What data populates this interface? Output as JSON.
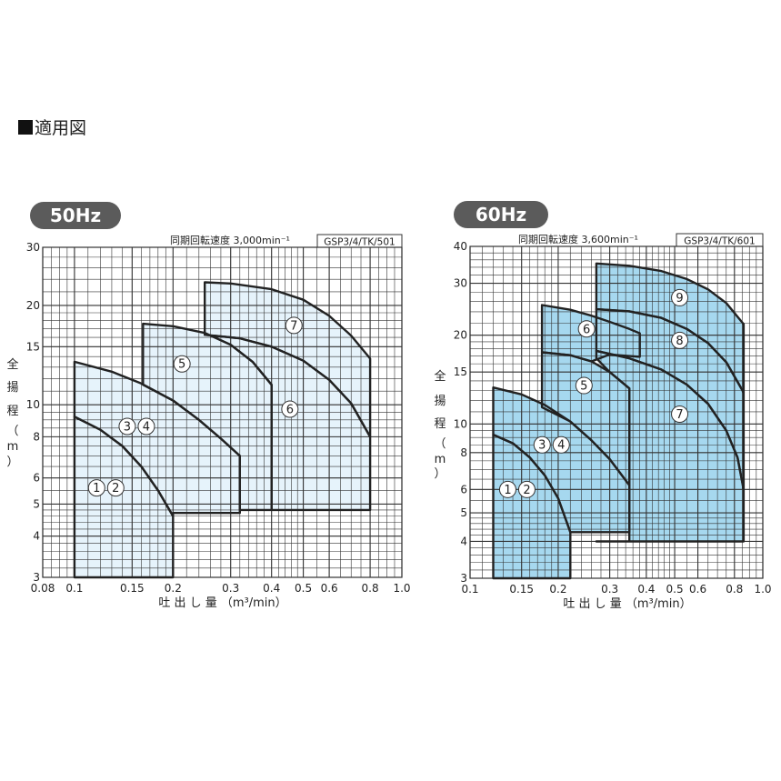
{
  "heading": "適用図",
  "chart_data": [
    {
      "type": "area",
      "badge": "50Hz",
      "subtitle": "同期回転速度 3,000min⁻¹",
      "model": "GSP3/4/TK/501",
      "xlabel": "吐 出 し 量 （m³/min）",
      "ylabel": [
        "全",
        "揚",
        "程",
        "（",
        "m",
        "）"
      ],
      "x_scale": "log",
      "y_scale": "log",
      "xlim": [
        0.08,
        1.0
      ],
      "ylim": [
        3,
        30
      ],
      "x_ticks": [
        "0.08",
        "0.1",
        "0.15",
        "0.2",
        "0.3",
        "0.4",
        "0.5",
        "0.6",
        "0.8",
        "1.0"
      ],
      "y_ticks": [
        "3",
        "4",
        "5",
        "6",
        "8",
        "10",
        "15",
        "20",
        "30"
      ],
      "fill": "#e6f3fb",
      "regions": [
        {
          "label": "①②",
          "label_at": [
            0.125,
            5.6
          ],
          "boundary": [
            [
              0.1,
              3
            ],
            [
              0.1,
              9.2
            ],
            [
              0.12,
              8.4
            ],
            [
              0.14,
              7.5
            ],
            [
              0.16,
              6.5
            ],
            [
              0.18,
              5.5
            ],
            [
              0.2,
              4.6
            ],
            [
              0.2,
              3
            ]
          ]
        },
        {
          "label": "③④",
          "label_at": [
            0.155,
            8.6
          ],
          "boundary": [
            [
              0.1,
              9.2
            ],
            [
              0.1,
              13.5
            ],
            [
              0.13,
              12.6
            ],
            [
              0.16,
              11.6
            ],
            [
              0.2,
              10.3
            ],
            [
              0.24,
              9.0
            ],
            [
              0.28,
              7.9
            ],
            [
              0.32,
              7.0
            ],
            [
              0.32,
              4.7
            ],
            [
              0.2,
              4.7
            ],
            [
              0.2,
              4.6
            ],
            [
              0.18,
              5.5
            ],
            [
              0.16,
              6.5
            ],
            [
              0.14,
              7.5
            ],
            [
              0.12,
              8.4
            ]
          ]
        },
        {
          "label": "⑤",
          "label_at": [
            0.213,
            13.3
          ],
          "boundary": [
            [
              0.162,
              11.5
            ],
            [
              0.162,
              17.6
            ],
            [
              0.2,
              17.3
            ],
            [
              0.25,
              16.5
            ],
            [
              0.3,
              15.2
            ],
            [
              0.35,
              13.5
            ],
            [
              0.4,
              11.5
            ],
            [
              0.4,
              4.8
            ],
            [
              0.32,
              4.8
            ],
            [
              0.32,
              7.0
            ],
            [
              0.28,
              7.9
            ],
            [
              0.24,
              9.0
            ],
            [
              0.2,
              10.3
            ]
          ]
        },
        {
          "label": "⑥",
          "label_at": [
            0.455,
            9.7
          ],
          "boundary": [
            [
              0.25,
              16.5
            ],
            [
              0.25,
              16.3
            ],
            [
              0.32,
              15.9
            ],
            [
              0.4,
              15.0
            ],
            [
              0.5,
              13.6
            ],
            [
              0.6,
              11.9
            ],
            [
              0.7,
              10.1
            ],
            [
              0.8,
              8.0
            ],
            [
              0.8,
              4.8
            ],
            [
              0.4,
              4.8
            ],
            [
              0.4,
              11.5
            ],
            [
              0.35,
              13.5
            ],
            [
              0.3,
              15.2
            ]
          ]
        },
        {
          "label": "⑦",
          "label_at": [
            0.468,
            17.4
          ],
          "boundary": [
            [
              0.25,
              16.3
            ],
            [
              0.25,
              23.5
            ],
            [
              0.3,
              23.3
            ],
            [
              0.4,
              22.4
            ],
            [
              0.5,
              20.8
            ],
            [
              0.6,
              18.6
            ],
            [
              0.7,
              16.2
            ],
            [
              0.8,
              13.8
            ],
            [
              0.8,
              8.0
            ],
            [
              0.7,
              10.1
            ],
            [
              0.6,
              11.9
            ],
            [
              0.5,
              13.6
            ],
            [
              0.4,
              15.0
            ],
            [
              0.32,
              15.9
            ]
          ]
        }
      ]
    },
    {
      "type": "area",
      "badge": "60Hz",
      "subtitle": "同期回転速度 3,600min⁻¹",
      "model": "GSP3/4/TK/601",
      "xlabel": "吐 出 し 量 （m³/min）",
      "ylabel": [
        "全",
        "揚",
        "程",
        "（",
        "m",
        "）"
      ],
      "x_scale": "log",
      "y_scale": "log",
      "xlim": [
        0.1,
        1.0
      ],
      "ylim": [
        3,
        40
      ],
      "x_ticks": [
        "0.1",
        "0.15",
        "0.2",
        "0.3",
        "0.4",
        "0.5",
        "0.6",
        "0.8",
        "1.0"
      ],
      "y_ticks": [
        "3",
        "4",
        "5",
        "6",
        "8",
        "10",
        "15",
        "20",
        "30",
        "40"
      ],
      "fill": "#a6d8ef",
      "regions": [
        {
          "label": "①②",
          "label_at": [
            0.145,
            6.0
          ],
          "boundary": [
            [
              0.12,
              3
            ],
            [
              0.12,
              9.2
            ],
            [
              0.14,
              8.6
            ],
            [
              0.16,
              7.7
            ],
            [
              0.18,
              6.7
            ],
            [
              0.2,
              5.6
            ],
            [
              0.22,
              4.3
            ],
            [
              0.22,
              3
            ]
          ]
        },
        {
          "label": "③④",
          "label_at": [
            0.19,
            8.5
          ],
          "boundary": [
            [
              0.12,
              9.2
            ],
            [
              0.12,
              13.3
            ],
            [
              0.15,
              12.6
            ],
            [
              0.18,
              11.6
            ],
            [
              0.22,
              10.2
            ],
            [
              0.26,
              8.8
            ],
            [
              0.3,
              7.6
            ],
            [
              0.35,
              6.2
            ],
            [
              0.35,
              4.3
            ],
            [
              0.22,
              4.3
            ],
            [
              0.22,
              4.3
            ],
            [
              0.2,
              5.6
            ],
            [
              0.18,
              6.7
            ],
            [
              0.16,
              7.7
            ],
            [
              0.14,
              8.6
            ]
          ]
        },
        {
          "label": "⑤",
          "label_at": [
            0.245,
            13.5
          ],
          "boundary": [
            [
              0.176,
              11.4
            ],
            [
              0.176,
              17.5
            ],
            [
              0.22,
              17.1
            ],
            [
              0.26,
              16.3
            ],
            [
              0.3,
              15.0
            ],
            [
              0.35,
              13.2
            ],
            [
              0.35,
              6.2
            ],
            [
              0.3,
              7.6
            ],
            [
              0.26,
              8.8
            ],
            [
              0.22,
              10.2
            ]
          ]
        },
        {
          "label": "⑥",
          "label_at": [
            0.25,
            21.0
          ],
          "boundary": [
            [
              0.176,
              17.5
            ],
            [
              0.176,
              25.3
            ],
            [
              0.22,
              24.4
            ],
            [
              0.26,
              23.3
            ],
            [
              0.3,
              22.2
            ],
            [
              0.35,
              21.0
            ],
            [
              0.38,
              20.3
            ],
            [
              0.38,
              16.9
            ],
            [
              0.3,
              17.2
            ],
            [
              0.26,
              16.3
            ],
            [
              0.22,
              17.1
            ]
          ]
        },
        {
          "label": "⑦",
          "label_at": [
            0.52,
            10.8
          ],
          "boundary": [
            [
              0.27,
              16.7
            ],
            [
              0.27,
              17.7
            ],
            [
              0.35,
              16.7
            ],
            [
              0.45,
              15.3
            ],
            [
              0.55,
              13.6
            ],
            [
              0.65,
              11.7
            ],
            [
              0.75,
              9.5
            ],
            [
              0.82,
              7.7
            ],
            [
              0.86,
              6.0
            ],
            [
              0.86,
              4.0
            ],
            [
              0.27,
              4.0
            ],
            [
              0.35,
              4.0
            ],
            [
              0.35,
              13.2
            ],
            [
              0.3,
              15.0
            ]
          ]
        },
        {
          "label": "⑧",
          "label_at": [
            0.52,
            19.2
          ],
          "boundary": [
            [
              0.27,
              17.7
            ],
            [
              0.27,
              24.5
            ],
            [
              0.35,
              24.1
            ],
            [
              0.45,
              22.9
            ],
            [
              0.55,
              21.0
            ],
            [
              0.65,
              18.8
            ],
            [
              0.75,
              16.2
            ],
            [
              0.86,
              12.8
            ],
            [
              0.86,
              6.0
            ],
            [
              0.82,
              7.7
            ],
            [
              0.75,
              9.5
            ],
            [
              0.65,
              11.7
            ],
            [
              0.55,
              13.6
            ],
            [
              0.45,
              15.3
            ],
            [
              0.35,
              16.7
            ]
          ]
        },
        {
          "label": "⑨",
          "label_at": [
            0.52,
            26.8
          ],
          "boundary": [
            [
              0.27,
              24.5
            ],
            [
              0.27,
              35.0
            ],
            [
              0.35,
              34.4
            ],
            [
              0.45,
              33.0
            ],
            [
              0.55,
              31.0
            ],
            [
              0.65,
              28.6
            ],
            [
              0.75,
              25.7
            ],
            [
              0.86,
              21.8
            ],
            [
              0.86,
              12.8
            ],
            [
              0.75,
              16.2
            ],
            [
              0.65,
              18.8
            ],
            [
              0.55,
              21.0
            ],
            [
              0.45,
              22.9
            ],
            [
              0.35,
              24.1
            ]
          ]
        }
      ]
    }
  ]
}
